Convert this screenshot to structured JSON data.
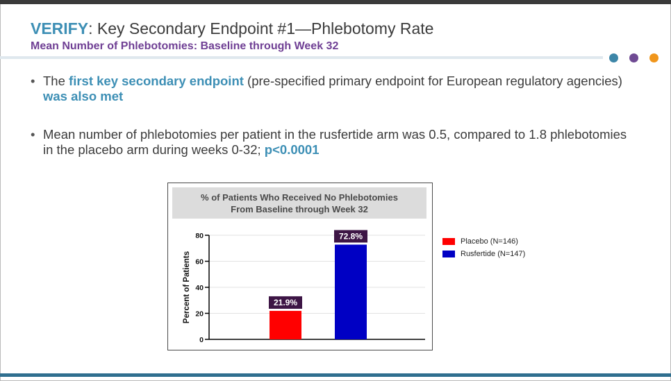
{
  "slide": {
    "title_accent": "VERIFY",
    "title_rest": ": Key Secondary Endpoint #1—Phlebotomy Rate",
    "subtitle": "Mean Number of Phlebotomies: Baseline through Week 32",
    "dot_colors": [
      "#3d86a8",
      "#6f4a93",
      "#f0961c"
    ]
  },
  "bullets": [
    {
      "parts": [
        {
          "text": "The ",
          "hl": false
        },
        {
          "text": "first key secondary endpoint",
          "hl": true
        },
        {
          "text": " (pre-specified primary endpoint for European regulatory agencies) ",
          "hl": false
        },
        {
          "text": "was also met",
          "hl": true
        }
      ]
    },
    {
      "parts": [
        {
          "text": "Mean number of phlebotomies per patient in the rusfertide arm was 0.5, compared to 1.8 phlebotomies in the placebo arm during weeks 0-32; ",
          "hl": false
        },
        {
          "text": "p<0.0001",
          "hl": true
        }
      ]
    }
  ],
  "chart_data": {
    "type": "bar",
    "title_line1": "% of Patients Who Received No Phlebotomies",
    "title_line2": "From Baseline through Week 32",
    "ylabel": "Percent of Patients",
    "xlabel": "",
    "ylim": [
      0,
      80
    ],
    "yticks": [
      "0",
      "20",
      "40",
      "60",
      "80"
    ],
    "grid": true,
    "legend_position": "right",
    "series": [
      {
        "name": "Placebo (N=146)",
        "value": 21.9,
        "label": "21.9%",
        "color": "#ff0000"
      },
      {
        "name": "Rusfertide (N=147)",
        "value": 72.8,
        "label": "72.8%",
        "color": "#0000c4"
      }
    ],
    "label_bg": "#3d1545"
  }
}
